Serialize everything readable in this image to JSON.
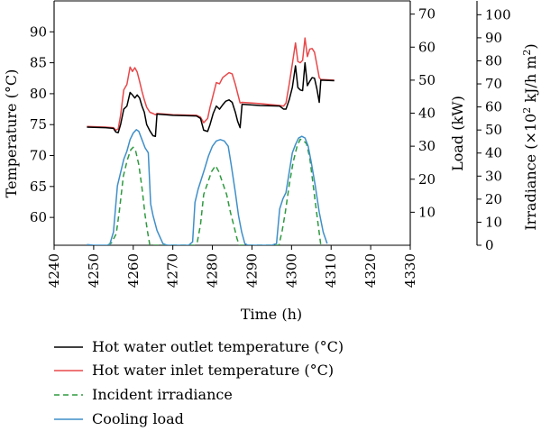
{
  "chart_data": {
    "type": "line",
    "xlabel": "Time (h)",
    "ylabel_left": "Temperature (°C)",
    "ylabel_right1": "Load (kW)",
    "ylabel_right2_parts": [
      "Irradiance (×10",
      "2",
      " kJ/h m",
      "2",
      ")"
    ],
    "xlim": [
      4240,
      4330
    ],
    "xticks": [
      4240,
      4250,
      4260,
      4270,
      4280,
      4290,
      4300,
      4310,
      4320,
      4330
    ],
    "ylim_temperature": [
      55.5,
      95
    ],
    "yticks_temperature": [
      60,
      65,
      70,
      75,
      80,
      85,
      90
    ],
    "ylim_load": [
      0,
      74
    ],
    "yticks_load": [
      10,
      20,
      30,
      40,
      50,
      60,
      70
    ],
    "ylim_irradiance": [
      0,
      106
    ],
    "yticks_irradiance": [
      0,
      10,
      20,
      30,
      40,
      50,
      60,
      70,
      80,
      90,
      100
    ],
    "series": [
      {
        "name": "Hot water outlet temperature (°C)",
        "axis": "temperature",
        "color": "#000000",
        "dash": "solid",
        "points": [
          [
            4248.3,
            74.6
          ],
          [
            4253,
            74.5
          ],
          [
            4255,
            74.4
          ],
          [
            4255.6,
            73.8
          ],
          [
            4256.2,
            73.7
          ],
          [
            4256.8,
            75
          ],
          [
            4257.6,
            77.5
          ],
          [
            4258.4,
            78
          ],
          [
            4259.2,
            80.2
          ],
          [
            4259.8,
            79.8
          ],
          [
            4260.4,
            79.3
          ],
          [
            4261,
            79.8
          ],
          [
            4261.6,
            79.3
          ],
          [
            4262.2,
            78
          ],
          [
            4262.8,
            77
          ],
          [
            4263.4,
            75
          ],
          [
            4264.2,
            74
          ],
          [
            4265,
            73.2
          ],
          [
            4265.6,
            73.1
          ],
          [
            4266,
            76.7
          ],
          [
            4270,
            76.5
          ],
          [
            4276,
            76.4
          ],
          [
            4277,
            76
          ],
          [
            4277.8,
            74.1
          ],
          [
            4278.8,
            73.9
          ],
          [
            4279.4,
            75
          ],
          [
            4280.2,
            76.8
          ],
          [
            4281,
            78
          ],
          [
            4281.8,
            77.5
          ],
          [
            4282.6,
            78.2
          ],
          [
            4283.4,
            78.8
          ],
          [
            4284.2,
            79
          ],
          [
            4285,
            78.6
          ],
          [
            4285.8,
            77
          ],
          [
            4286.4,
            75.5
          ],
          [
            4287,
            74.5
          ],
          [
            4287.5,
            78.3
          ],
          [
            4292,
            78.1
          ],
          [
            4297,
            78
          ],
          [
            4298,
            77.5
          ],
          [
            4298.6,
            77.5
          ],
          [
            4299.4,
            79
          ],
          [
            4300.2,
            81
          ],
          [
            4301,
            84.5
          ],
          [
            4301.6,
            81
          ],
          [
            4302.2,
            80.6
          ],
          [
            4302.8,
            80.5
          ],
          [
            4303.4,
            85
          ],
          [
            4304,
            81.3
          ],
          [
            4304.6,
            82
          ],
          [
            4305.2,
            82.6
          ],
          [
            4305.8,
            82.5
          ],
          [
            4306.4,
            80.8
          ],
          [
            4307,
            78.6
          ],
          [
            4307.4,
            82.2
          ],
          [
            4310.8,
            82.1
          ]
        ]
      },
      {
        "name": "Hot water inlet temperature (°C)",
        "axis": "temperature",
        "color": "#e8484a",
        "dash": "solid",
        "points": [
          [
            4248.3,
            74.7
          ],
          [
            4253,
            74.6
          ],
          [
            4255,
            74.5
          ],
          [
            4255.6,
            74.1
          ],
          [
            4256.2,
            74.3
          ],
          [
            4256.8,
            76.5
          ],
          [
            4257.6,
            80.6
          ],
          [
            4258.4,
            81.5
          ],
          [
            4259.2,
            84.3
          ],
          [
            4259.8,
            83.6
          ],
          [
            4260.4,
            84.2
          ],
          [
            4261,
            83.5
          ],
          [
            4261.6,
            82
          ],
          [
            4262.2,
            80.4
          ],
          [
            4262.8,
            79
          ],
          [
            4263.4,
            77.8
          ],
          [
            4264.2,
            77
          ],
          [
            4265,
            76.8
          ],
          [
            4265.6,
            76.6
          ],
          [
            4266,
            76.8
          ],
          [
            4270,
            76.6
          ],
          [
            4276,
            76.5
          ],
          [
            4277,
            76.2
          ],
          [
            4277.8,
            75.3
          ],
          [
            4278.8,
            76
          ],
          [
            4279.4,
            77.8
          ],
          [
            4280.2,
            79.8
          ],
          [
            4281,
            81.8
          ],
          [
            4281.8,
            81.6
          ],
          [
            4282.6,
            82.6
          ],
          [
            4283.4,
            83
          ],
          [
            4284.2,
            83.4
          ],
          [
            4285,
            83.2
          ],
          [
            4285.8,
            81.5
          ],
          [
            4286.4,
            80
          ],
          [
            4287,
            78.5
          ],
          [
            4287.5,
            78.6
          ],
          [
            4292,
            78.4
          ],
          [
            4297,
            78.1
          ],
          [
            4298,
            78
          ],
          [
            4298.6,
            78.5
          ],
          [
            4299.4,
            81.5
          ],
          [
            4300.2,
            84.8
          ],
          [
            4301,
            88.2
          ],
          [
            4301.6,
            85.2
          ],
          [
            4302.2,
            85
          ],
          [
            4302.8,
            85.4
          ],
          [
            4303.4,
            89
          ],
          [
            4304,
            86
          ],
          [
            4304.6,
            87.2
          ],
          [
            4305.2,
            87.3
          ],
          [
            4305.8,
            86.7
          ],
          [
            4306.4,
            84.7
          ],
          [
            4307,
            82.6
          ],
          [
            4307.4,
            82.3
          ],
          [
            4310.8,
            82.2
          ]
        ]
      },
      {
        "name": "Incident irradiance",
        "axis": "irradiance",
        "color": "#2e9a3f",
        "dash": "dashed",
        "points": [
          [
            4253.5,
            0
          ],
          [
            4254.5,
            1
          ],
          [
            4255.7,
            5
          ],
          [
            4256.5,
            15
          ],
          [
            4257.5,
            30
          ],
          [
            4258.5,
            37
          ],
          [
            4259.4,
            41.5
          ],
          [
            4260,
            42.5
          ],
          [
            4260.6,
            41
          ],
          [
            4261.4,
            35
          ],
          [
            4262.2,
            25
          ],
          [
            4263,
            13
          ],
          [
            4263.6,
            6
          ],
          [
            4264.2,
            0
          ],
          [
            4275.5,
            0
          ],
          [
            4276.2,
            1.5
          ],
          [
            4277,
            9
          ],
          [
            4277.8,
            22
          ],
          [
            4278.8,
            27
          ],
          [
            4279.8,
            32
          ],
          [
            4280.8,
            34.5
          ],
          [
            4281.6,
            32
          ],
          [
            4282.6,
            27
          ],
          [
            4283.6,
            22
          ],
          [
            4284.6,
            14
          ],
          [
            4285.5,
            8
          ],
          [
            4286.2,
            3
          ],
          [
            4286.8,
            0
          ],
          [
            4296.8,
            0
          ],
          [
            4297.6,
            6
          ],
          [
            4298.4,
            14
          ],
          [
            4299.4,
            26
          ],
          [
            4300.4,
            36
          ],
          [
            4301.4,
            43
          ],
          [
            4302.2,
            46
          ],
          [
            4303,
            45.5
          ],
          [
            4303.8,
            44
          ],
          [
            4304.6,
            38
          ],
          [
            4305.4,
            27
          ],
          [
            4306.2,
            16
          ],
          [
            4306.8,
            8
          ],
          [
            4307.4,
            0
          ]
        ]
      },
      {
        "name": "Cooling load",
        "axis": "load",
        "color": "#3f8fc9",
        "dash": "solid",
        "points": [
          [
            4248.3,
            0.2
          ],
          [
            4250,
            0
          ],
          [
            4254,
            0
          ],
          [
            4255,
            4
          ],
          [
            4256,
            18
          ],
          [
            4256.8,
            22
          ],
          [
            4257.6,
            26
          ],
          [
            4258.4,
            28.5
          ],
          [
            4259.2,
            32
          ],
          [
            4260,
            34
          ],
          [
            4260.8,
            35
          ],
          [
            4261.4,
            34.5
          ],
          [
            4262.2,
            32
          ],
          [
            4263,
            29.5
          ],
          [
            4263.8,
            28
          ],
          [
            4264.4,
            12.5
          ],
          [
            4265,
            9
          ],
          [
            4266,
            4.5
          ],
          [
            4267.5,
            0.5
          ],
          [
            4268.5,
            0
          ],
          [
            4274,
            0
          ],
          [
            4275,
            1
          ],
          [
            4275.6,
            13
          ],
          [
            4276.4,
            17
          ],
          [
            4277.2,
            20
          ],
          [
            4278,
            23
          ],
          [
            4279,
            27
          ],
          [
            4280,
            30
          ],
          [
            4281,
            31.6
          ],
          [
            4282,
            32
          ],
          [
            4283,
            31.6
          ],
          [
            4284,
            30
          ],
          [
            4284.8,
            24
          ],
          [
            4285.8,
            16
          ],
          [
            4286.6,
            9
          ],
          [
            4287.4,
            4
          ],
          [
            4288.2,
            0.5
          ],
          [
            4289,
            0
          ],
          [
            4295,
            0
          ],
          [
            4296.2,
            0.5
          ],
          [
            4297,
            11
          ],
          [
            4297.8,
            14
          ],
          [
            4298.6,
            16
          ],
          [
            4299.4,
            22
          ],
          [
            4300.2,
            28
          ],
          [
            4301,
            30.5
          ],
          [
            4301.8,
            32.5
          ],
          [
            4302.6,
            33
          ],
          [
            4303.4,
            32.5
          ],
          [
            4304.2,
            30
          ],
          [
            4305,
            25
          ],
          [
            4306,
            18
          ],
          [
            4307,
            10
          ],
          [
            4308,
            4
          ],
          [
            4309,
            0.5
          ]
        ]
      }
    ],
    "legend_position": "bottom",
    "grid": false
  }
}
